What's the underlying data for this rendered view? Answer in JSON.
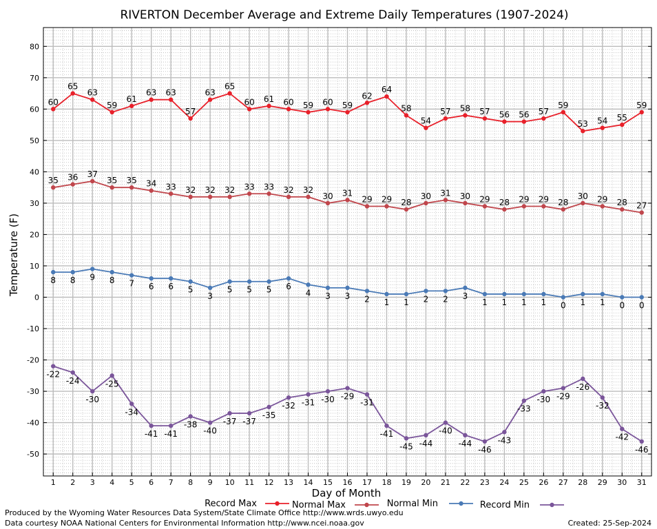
{
  "chart_data": {
    "type": "line",
    "title": "RIVERTON December Average and Extreme Daily Temperatures (1907-2024)",
    "xlabel": "Day of Month",
    "ylabel": "Temperature (F)",
    "ylim": [
      -57,
      86
    ],
    "yticks": [
      -50,
      -40,
      -30,
      -20,
      -10,
      0,
      10,
      20,
      30,
      40,
      50,
      60,
      70,
      80
    ],
    "x": [
      1,
      2,
      3,
      4,
      5,
      6,
      7,
      8,
      9,
      10,
      11,
      12,
      13,
      14,
      15,
      16,
      17,
      18,
      19,
      20,
      21,
      22,
      23,
      24,
      25,
      26,
      27,
      28,
      29,
      30,
      31
    ],
    "grid": true,
    "legend_position": "bottom",
    "series": [
      {
        "name": "Record Max",
        "color": "#e8202a",
        "label_position": "above",
        "values": [
          60,
          65,
          63,
          59,
          61,
          63,
          63,
          57,
          63,
          65,
          60,
          61,
          60,
          59,
          60,
          59,
          62,
          64,
          58,
          54,
          57,
          58,
          57,
          56,
          56,
          57,
          59,
          53,
          54,
          55,
          59
        ]
      },
      {
        "name": "Normal Max",
        "color": "#c0464c",
        "label_position": "above",
        "values": [
          35,
          36,
          37,
          35,
          35,
          34,
          33,
          32,
          32,
          32,
          33,
          33,
          32,
          32,
          30,
          31,
          29,
          29,
          28,
          30,
          31,
          30,
          29,
          28,
          29,
          29,
          28,
          30,
          29,
          28,
          27
        ]
      },
      {
        "name": "Normal Min",
        "color": "#4a7ab6",
        "label_position": "below",
        "values": [
          8,
          8,
          9,
          8,
          7,
          6,
          6,
          5,
          3,
          5,
          5,
          5,
          6,
          4,
          3,
          3,
          2,
          1,
          1,
          2,
          2,
          3,
          1,
          1,
          1,
          1,
          0,
          1,
          1,
          0,
          0
        ]
      },
      {
        "name": "Record Min",
        "color": "#7a559a",
        "label_position": "below",
        "values": [
          -22,
          -24,
          -30,
          -25,
          -34,
          -41,
          -41,
          -38,
          -40,
          -37,
          -37,
          -35,
          -32,
          -31,
          -30,
          -29,
          -31,
          -41,
          -45,
          -44,
          -40,
          -44,
          -46,
          -43,
          -33,
          -30,
          -29,
          -26,
          -32,
          -42,
          -46
        ]
      }
    ]
  },
  "footer": {
    "produced_by": "Produced by the Wyoming Water Resources Data System/State Climate Office http://www.wrds.uwyo.edu",
    "data_courtesy": "Data courtesy NOAA National Centers for Environmental Information http://www.ncei.noaa.gov",
    "created": "Created: 25-Sep-2024"
  }
}
